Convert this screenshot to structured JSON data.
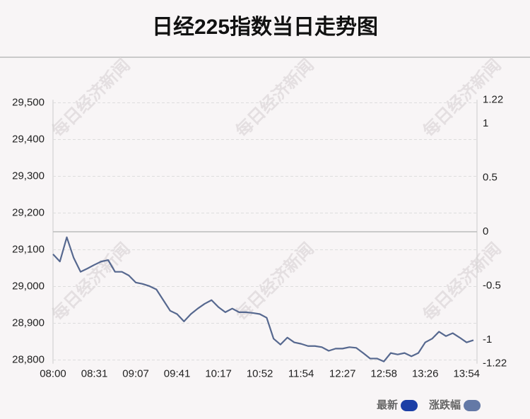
{
  "chart_data": {
    "type": "line",
    "title": "日经225指数当日走势图",
    "watermark": "每日经济新闻",
    "categories": [
      "08:00",
      null,
      null,
      null,
      null,
      null,
      "08:31",
      null,
      null,
      null,
      null,
      null,
      "09:07",
      null,
      null,
      null,
      null,
      null,
      "09:41",
      null,
      null,
      null,
      null,
      null,
      "10:17",
      null,
      null,
      null,
      null,
      null,
      "10:52",
      null,
      null,
      null,
      null,
      null,
      "11:54",
      null,
      null,
      null,
      null,
      null,
      "12:27",
      null,
      null,
      null,
      null,
      null,
      "12:58",
      null,
      null,
      null,
      null,
      null,
      "13:26",
      null,
      null,
      null,
      null,
      null,
      "13:54",
      null
    ],
    "series": [
      {
        "name": "最新",
        "color": "#56688f",
        "values": [
          29088,
          29068,
          29134,
          29078,
          29040,
          29049,
          29059,
          29068,
          29072,
          29040,
          29040,
          29030,
          29011,
          29007,
          29001,
          28992,
          28963,
          28934,
          28925,
          28905,
          28925,
          28940,
          28953,
          28963,
          28944,
          28930,
          28940,
          28930,
          28930,
          28928,
          28925,
          28915,
          28858,
          28842,
          28861,
          28848,
          28844,
          28838,
          28838,
          28835,
          28825,
          28831,
          28831,
          28835,
          28833,
          28819,
          28804,
          28804,
          28796,
          28819,
          28815,
          28819,
          28810,
          28819,
          28848,
          28858,
          28877,
          28865,
          28873,
          28861,
          28848,
          28854
        ]
      }
    ],
    "legend": [
      {
        "name": "最新",
        "color": "#1c3fa6"
      },
      {
        "name": "涨跌幅",
        "color": "#6479a6"
      }
    ],
    "ylim": [
      28790,
      29508
    ],
    "yticks": [
      {
        "value": 28800,
        "label": "28,800"
      },
      {
        "value": 28900,
        "label": "28,900"
      },
      {
        "value": 29000,
        "label": "29,000"
      },
      {
        "value": 29100,
        "label": "29,100"
      },
      {
        "value": 29200,
        "label": "29,200"
      },
      {
        "value": 29300,
        "label": "29,300"
      },
      {
        "value": 29400,
        "label": "29,400"
      },
      {
        "value": 29500,
        "label": "29,500"
      }
    ],
    "y2lim": [
      -1.22,
      1.22
    ],
    "y2ticks": [
      -1.22,
      -1,
      -0.5,
      0,
      0.5,
      1,
      1.22
    ],
    "grid": true
  }
}
